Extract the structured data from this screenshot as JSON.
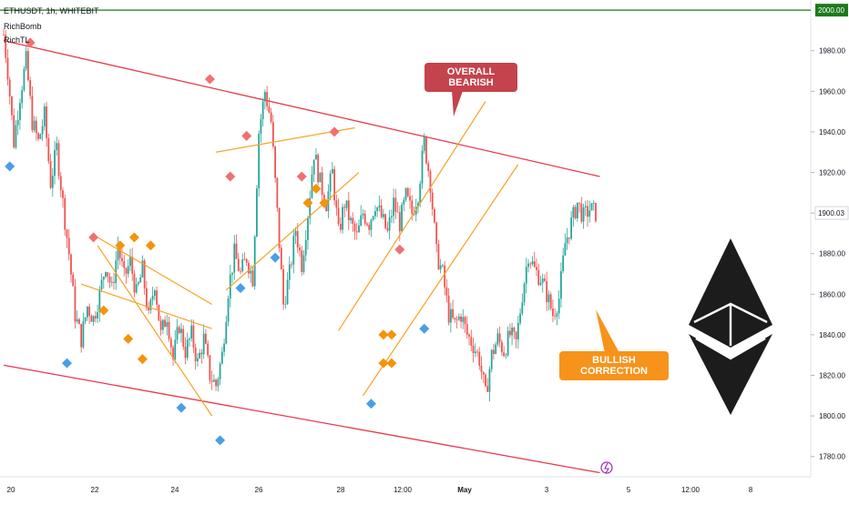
{
  "header": {
    "symbol_line": "ETHUSDT, 1h, WHITEBIT",
    "indicator_1": "RichBomb",
    "indicator_2": "RichTL"
  },
  "annotations": {
    "bearish_label": "OVERALL BEARISH",
    "bullish_label": "BULLISH CORRECTION"
  },
  "colors": {
    "bull_candle": "#26a69a",
    "bear_candle": "#ef5350",
    "channel_red": "#e8394a",
    "trend_orange": "#f7a325",
    "bearish_box": "#c4434c",
    "bullish_box": "#f7931a",
    "level_green": "#1b7a1b",
    "diamond_red": "#f07070",
    "diamond_orange": "#f5930a",
    "diamond_blue": "#4a9ee8"
  },
  "chart_data": {
    "type": "candlestick",
    "instrument": "ETHUSDT",
    "timeframe": "1h",
    "exchange": "WHITEBIT",
    "x_ticks": [
      "20",
      "22",
      "24",
      "26",
      "28",
      "12:00",
      "May",
      "3",
      "5",
      "12:00",
      "8"
    ],
    "y_ticks": [
      "1780.00",
      "1800.00",
      "1820.00",
      "1840.00",
      "1860.00",
      "1880.00",
      "1900.00",
      "1920.00",
      "1940.00",
      "1960.00",
      "1980.00"
    ],
    "ylim": [
      1770,
      2005
    ],
    "current_price": "1900.03",
    "horizontal_level": "2000.00",
    "price_path": [
      [
        0,
        1988
      ],
      [
        2,
        1970
      ],
      [
        5,
        1935
      ],
      [
        8,
        1958
      ],
      [
        11,
        1975
      ],
      [
        14,
        1945
      ],
      [
        17,
        1935
      ],
      [
        20,
        1948
      ],
      [
        23,
        1915
      ],
      [
        26,
        1932
      ],
      [
        29,
        1905
      ],
      [
        32,
        1880
      ],
      [
        35,
        1850
      ],
      [
        38,
        1838
      ],
      [
        41,
        1854
      ],
      [
        44,
        1848
      ],
      [
        47,
        1860
      ],
      [
        50,
        1875
      ],
      [
        53,
        1862
      ],
      [
        56,
        1884
      ],
      [
        59,
        1868
      ],
      [
        62,
        1876
      ],
      [
        65,
        1860
      ],
      [
        68,
        1872
      ],
      [
        71,
        1848
      ],
      [
        74,
        1866
      ],
      [
        77,
        1840
      ],
      [
        80,
        1850
      ],
      [
        83,
        1828
      ],
      [
        86,
        1845
      ],
      [
        89,
        1832
      ],
      [
        92,
        1840
      ],
      [
        95,
        1826
      ],
      [
        98,
        1838
      ],
      [
        101,
        1820
      ],
      [
        104,
        1815
      ],
      [
        107,
        1830
      ],
      [
        110,
        1862
      ],
      [
        113,
        1880
      ],
      [
        116,
        1870
      ],
      [
        119,
        1878
      ],
      [
        122,
        1868
      ],
      [
        125,
        1940
      ],
      [
        128,
        1960
      ],
      [
        131,
        1945
      ],
      [
        134,
        1900
      ],
      [
        137,
        1855
      ],
      [
        140,
        1870
      ],
      [
        143,
        1892
      ],
      [
        146,
        1875
      ],
      [
        149,
        1900
      ],
      [
        152,
        1930
      ],
      [
        155,
        1915
      ],
      [
        158,
        1905
      ],
      [
        161,
        1920
      ],
      [
        164,
        1890
      ],
      [
        167,
        1905
      ],
      [
        170,
        1895
      ],
      [
        173,
        1888
      ],
      [
        176,
        1900
      ],
      [
        179,
        1895
      ],
      [
        182,
        1905
      ],
      [
        185,
        1898
      ],
      [
        188,
        1890
      ],
      [
        191,
        1905
      ],
      [
        194,
        1895
      ],
      [
        197,
        1908
      ],
      [
        200,
        1900
      ],
      [
        203,
        1910
      ],
      [
        206,
        1935
      ],
      [
        209,
        1915
      ],
      [
        212,
        1880
      ],
      [
        215,
        1870
      ],
      [
        218,
        1850
      ],
      [
        221,
        1845
      ],
      [
        224,
        1850
      ],
      [
        227,
        1840
      ],
      [
        230,
        1835
      ],
      [
        233,
        1828
      ],
      [
        236,
        1810
      ],
      [
        239,
        1830
      ],
      [
        242,
        1838
      ],
      [
        245,
        1832
      ],
      [
        248,
        1840
      ],
      [
        251,
        1836
      ],
      [
        254,
        1860
      ],
      [
        257,
        1880
      ],
      [
        260,
        1872
      ],
      [
        263,
        1868
      ],
      [
        266,
        1860
      ],
      [
        269,
        1850
      ],
      [
        272,
        1858
      ],
      [
        275,
        1885
      ],
      [
        278,
        1895
      ],
      [
        281,
        1905
      ],
      [
        284,
        1898
      ],
      [
        287,
        1902
      ],
      [
        290,
        1900
      ]
    ],
    "channel_lines": [
      {
        "role": "upper",
        "from": [
          0,
          1985
        ],
        "to": [
          292,
          1918
        ]
      },
      {
        "role": "lower",
        "from": [
          0,
          1825
        ],
        "to": [
          292,
          1772
        ]
      }
    ],
    "trend_lines": [
      {
        "from": [
          46,
          1884
        ],
        "to": [
          102,
          1800
        ]
      },
      {
        "from": [
          38,
          1865
        ],
        "to": [
          102,
          1843
        ]
      },
      {
        "from": [
          46,
          1888
        ],
        "to": [
          102,
          1855
        ]
      },
      {
        "from": [
          104,
          1930
        ],
        "to": [
          172,
          1942
        ]
      },
      {
        "from": [
          109,
          1862
        ],
        "to": [
          174,
          1920
        ]
      },
      {
        "from": [
          164,
          1842
        ],
        "to": [
          236,
          1955
        ]
      },
      {
        "from": [
          176,
          1810
        ],
        "to": [
          252,
          1924
        ]
      }
    ],
    "markers": [
      {
        "t": 13,
        "price": 1984,
        "kind": "top"
      },
      {
        "t": 44,
        "price": 1888,
        "kind": "top"
      },
      {
        "t": 101,
        "price": 1966,
        "kind": "top"
      },
      {
        "t": 119,
        "price": 1938,
        "kind": "top"
      },
      {
        "t": 111,
        "price": 1918,
        "kind": "top"
      },
      {
        "t": 146,
        "price": 1918,
        "kind": "top"
      },
      {
        "t": 162,
        "price": 1940,
        "kind": "top"
      },
      {
        "t": 194,
        "price": 1882,
        "kind": "top"
      },
      {
        "t": 57,
        "price": 1884,
        "kind": "mid"
      },
      {
        "t": 64,
        "price": 1888,
        "kind": "mid"
      },
      {
        "t": 72,
        "price": 1884,
        "kind": "mid"
      },
      {
        "t": 49,
        "price": 1852,
        "kind": "mid"
      },
      {
        "t": 61,
        "price": 1838,
        "kind": "mid"
      },
      {
        "t": 68,
        "price": 1828,
        "kind": "mid"
      },
      {
        "t": 149,
        "price": 1905,
        "kind": "mid"
      },
      {
        "t": 153,
        "price": 1912,
        "kind": "mid"
      },
      {
        "t": 157,
        "price": 1905,
        "kind": "mid"
      },
      {
        "t": 186,
        "price": 1840,
        "kind": "mid"
      },
      {
        "t": 190,
        "price": 1840,
        "kind": "mid"
      },
      {
        "t": 186,
        "price": 1826,
        "kind": "mid"
      },
      {
        "t": 190,
        "price": 1826,
        "kind": "mid"
      },
      {
        "t": 3,
        "price": 1923,
        "kind": "bottom"
      },
      {
        "t": 31,
        "price": 1826,
        "kind": "bottom"
      },
      {
        "t": 87,
        "price": 1804,
        "kind": "bottom"
      },
      {
        "t": 106,
        "price": 1788,
        "kind": "bottom"
      },
      {
        "t": 116,
        "price": 1863,
        "kind": "bottom"
      },
      {
        "t": 133,
        "price": 1878,
        "kind": "bottom"
      },
      {
        "t": 180,
        "price": 1806,
        "kind": "bottom"
      },
      {
        "t": 206,
        "price": 1843,
        "kind": "bottom"
      }
    ]
  }
}
